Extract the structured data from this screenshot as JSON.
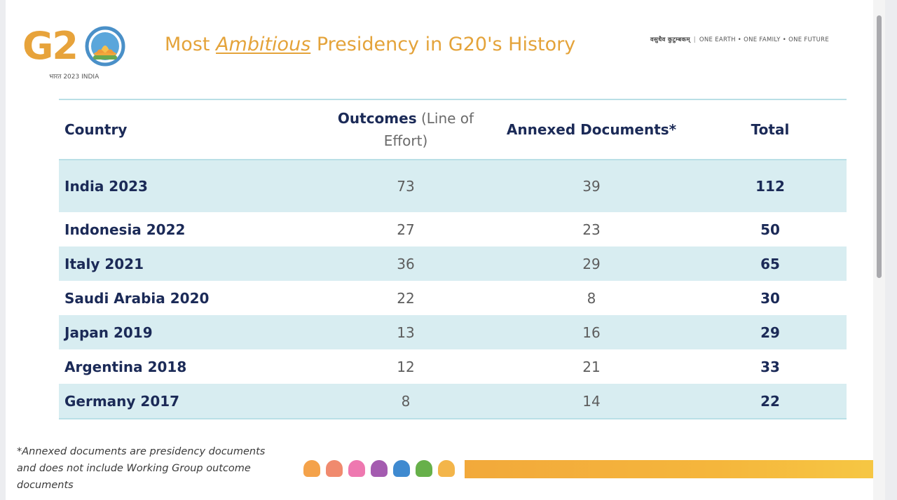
{
  "logo": {
    "text": "G20",
    "tagline": "भारत 2023 INDIA"
  },
  "header": {
    "title_prefix": "Most ",
    "title_emphasis": "Ambitious",
    "title_suffix": " Presidency in G20's History",
    "motto_hindi": "वसुधैव कुटुम्बकम्",
    "motto_english": "ONE EARTH • ONE FAMILY • ONE FUTURE"
  },
  "table": {
    "headers": {
      "country": "Country",
      "outcomes_bold": "Outcomes",
      "outcomes_rest": " (Line of Effort)",
      "annexed": "Annexed Documents*",
      "total": "Total"
    },
    "rows": [
      {
        "country": "India 2023",
        "outcomes": "73",
        "annexed": "39",
        "total": "112"
      },
      {
        "country": "Indonesia 2022",
        "outcomes": "27",
        "annexed": "23",
        "total": "50"
      },
      {
        "country": "Italy 2021",
        "outcomes": "36",
        "annexed": "29",
        "total": "65"
      },
      {
        "country": "Saudi Arabia 2020",
        "outcomes": "22",
        "annexed": "8",
        "total": "30"
      },
      {
        "country": "Japan 2019",
        "outcomes": "13",
        "annexed": "16",
        "total": "29"
      },
      {
        "country": "Argentina 2018",
        "outcomes": "12",
        "annexed": "21",
        "total": "33"
      },
      {
        "country": "Germany 2017",
        "outcomes": "8",
        "annexed": "14",
        "total": "22"
      }
    ]
  },
  "footnote": "*Annexed documents are presidency documents and does not include Working Group outcome documents",
  "colors": {
    "accent_orange": "#e4a33a",
    "navy": "#1b2a57",
    "row_shade": "#d8edf1",
    "rule": "#b9dfe6"
  },
  "decor_dots": [
    "#f4a24a",
    "#f08a6e",
    "#ee78b0",
    "#a45bb0",
    "#3f8ad0",
    "#67b04a",
    "#f3b54a"
  ]
}
